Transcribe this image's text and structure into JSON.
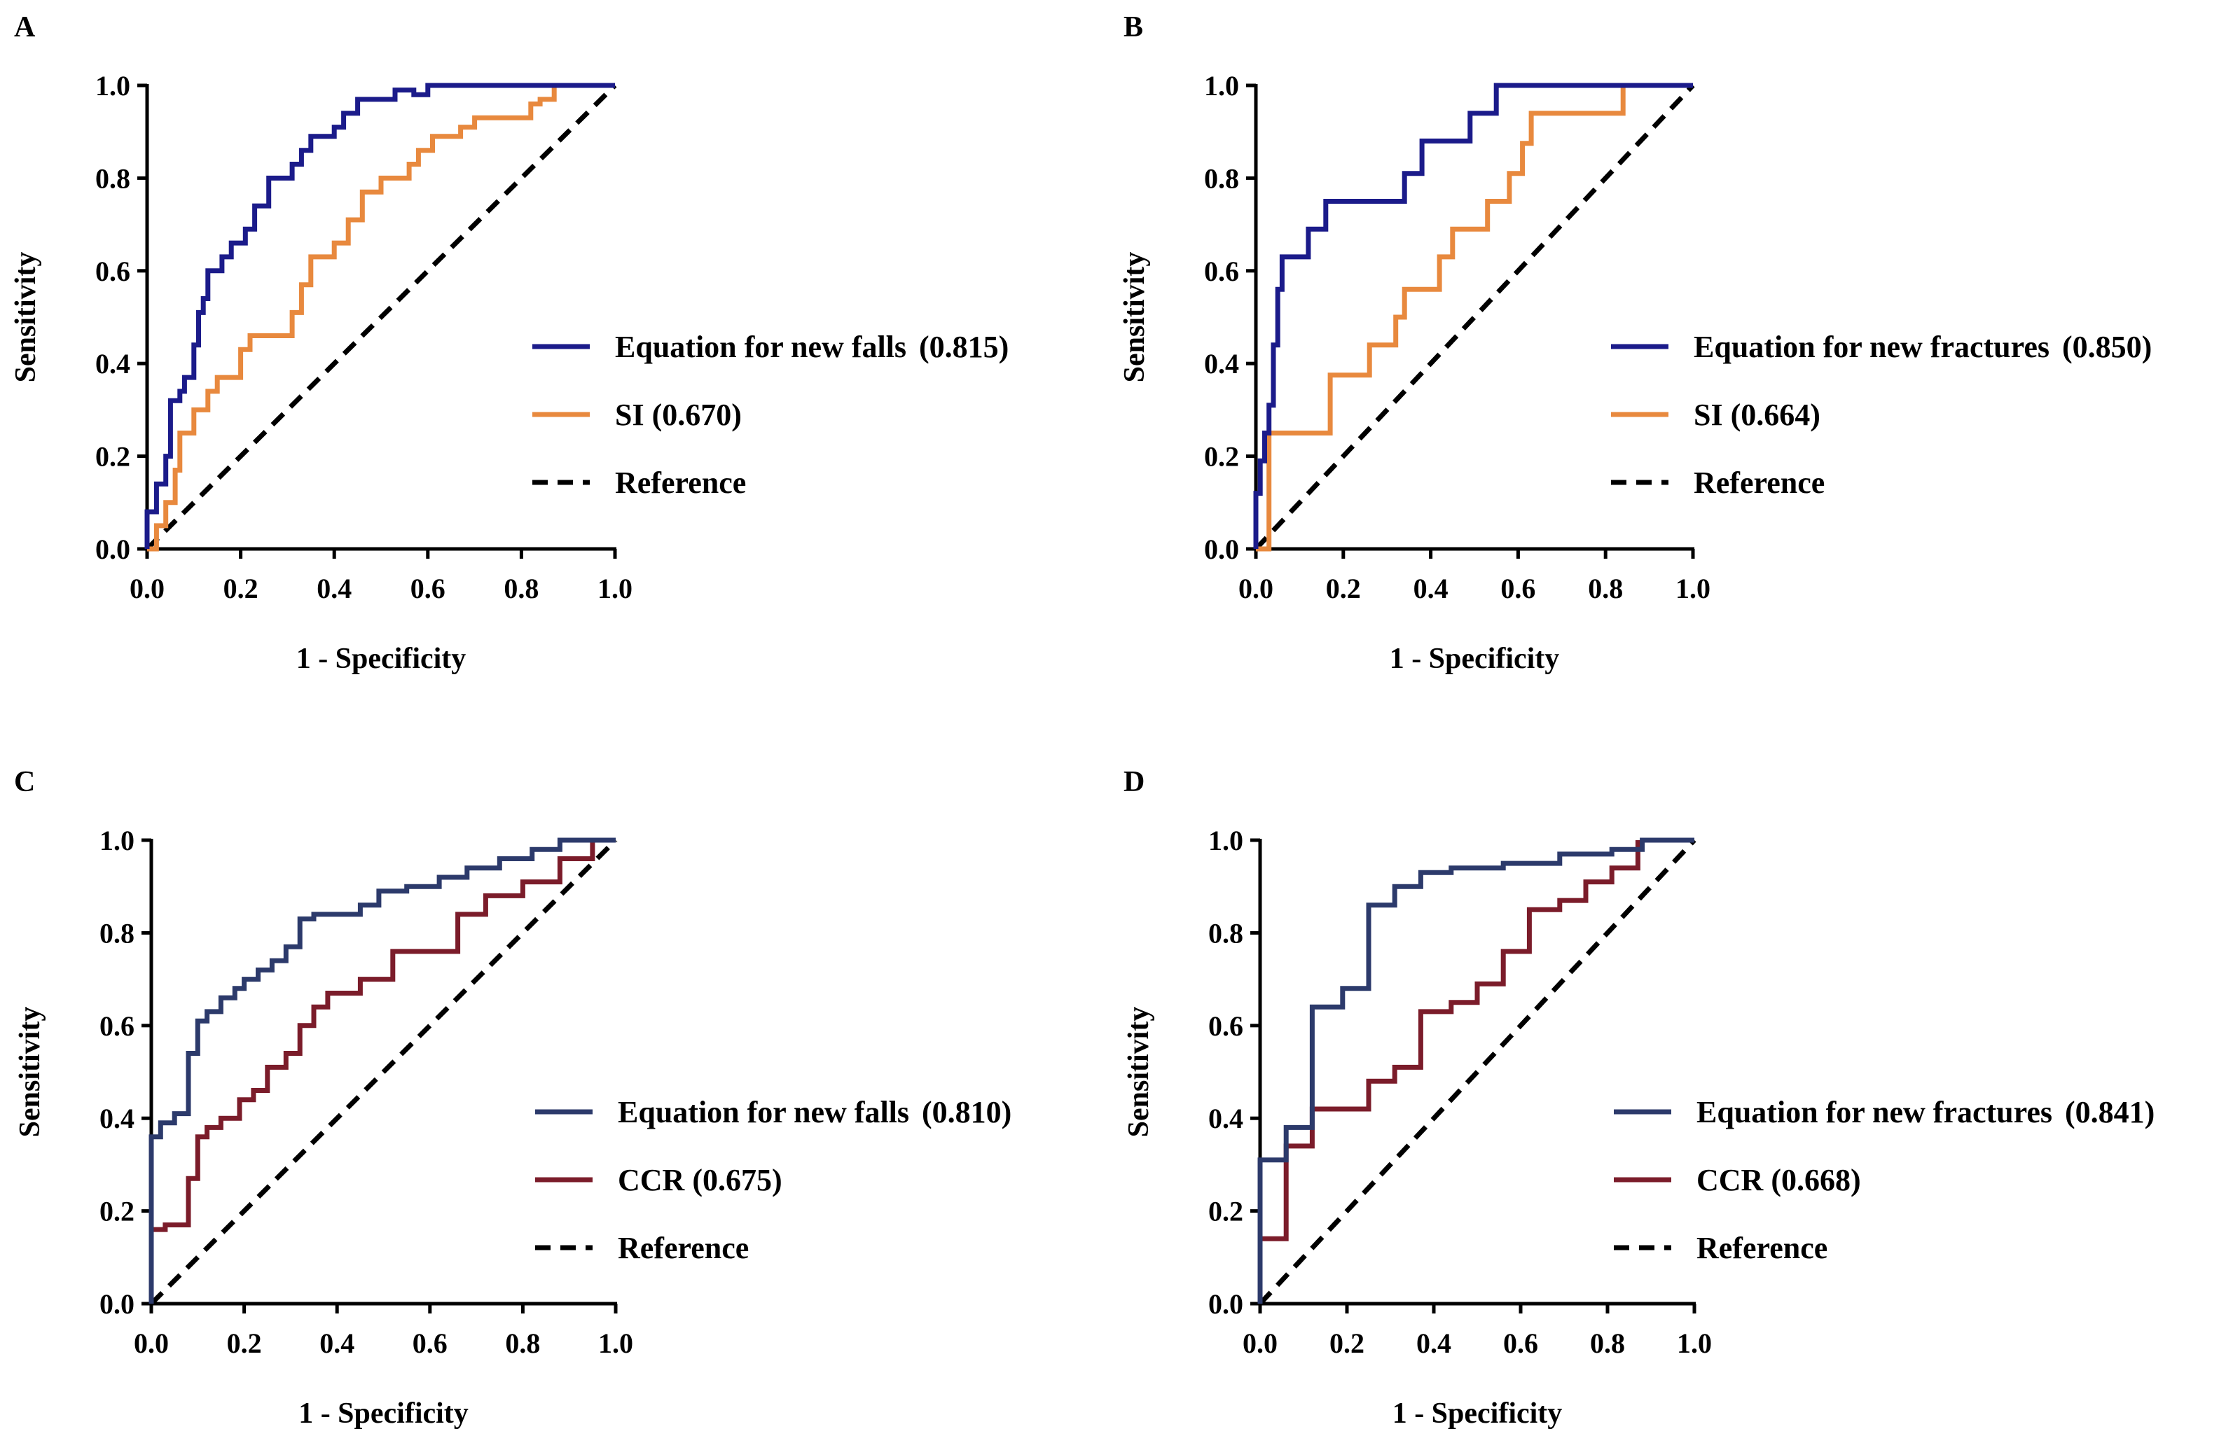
{
  "chart_data": [
    {
      "id": "A",
      "type": "line",
      "panel_label": "A",
      "title": "",
      "xlabel": "1 - Specificity",
      "ylabel": "Sensitivity",
      "xlim": [
        0,
        1
      ],
      "ylim": [
        0,
        1
      ],
      "ticks": [
        "0.0",
        "0.2",
        "0.4",
        "0.6",
        "0.8",
        "1.0"
      ],
      "legend_position": "right",
      "series": [
        {
          "name": "Equation for new falls (0.815)",
          "legend_name": "Equation for new falls",
          "legend_value": "(0.815)",
          "color": "#1b1b8a",
          "x": [
            0,
            0,
            0.02,
            0.02,
            0.04,
            0.04,
            0.05,
            0.05,
            0.07,
            0.07,
            0.08,
            0.08,
            0.1,
            0.1,
            0.11,
            0.11,
            0.12,
            0.12,
            0.13,
            0.13,
            0.16,
            0.16,
            0.18,
            0.18,
            0.21,
            0.21,
            0.23,
            0.23,
            0.26,
            0.26,
            0.31,
            0.31,
            0.33,
            0.33,
            0.35,
            0.35,
            0.4,
            0.4,
            0.42,
            0.42,
            0.45,
            0.45,
            0.53,
            0.53,
            0.57,
            0.57,
            0.6,
            0.6,
            1.0
          ],
          "y": [
            0,
            0.08,
            0.08,
            0.14,
            0.14,
            0.2,
            0.2,
            0.32,
            0.32,
            0.34,
            0.34,
            0.37,
            0.37,
            0.44,
            0.44,
            0.51,
            0.51,
            0.54,
            0.54,
            0.6,
            0.6,
            0.63,
            0.63,
            0.66,
            0.66,
            0.69,
            0.69,
            0.74,
            0.74,
            0.8,
            0.8,
            0.83,
            0.83,
            0.86,
            0.86,
            0.89,
            0.89,
            0.91,
            0.91,
            0.94,
            0.94,
            0.97,
            0.97,
            0.99,
            0.99,
            0.98,
            0.98,
            1.0,
            1.0
          ]
        },
        {
          "name": "SI (0.670)",
          "legend_name": "SI (0.670)",
          "legend_value": "",
          "color": "#e8893e",
          "x": [
            0,
            0.02,
            0.02,
            0.04,
            0.04,
            0.06,
            0.06,
            0.07,
            0.07,
            0.1,
            0.1,
            0.13,
            0.13,
            0.15,
            0.15,
            0.2,
            0.2,
            0.22,
            0.22,
            0.31,
            0.31,
            0.33,
            0.33,
            0.35,
            0.35,
            0.4,
            0.4,
            0.43,
            0.43,
            0.46,
            0.46,
            0.5,
            0.5,
            0.56,
            0.56,
            0.58,
            0.58,
            0.61,
            0.61,
            0.67,
            0.67,
            0.7,
            0.7,
            0.82,
            0.82,
            0.84,
            0.84,
            0.87,
            0.87
          ],
          "y": [
            0,
            0,
            0.05,
            0.05,
            0.1,
            0.1,
            0.17,
            0.17,
            0.25,
            0.25,
            0.3,
            0.3,
            0.34,
            0.34,
            0.37,
            0.37,
            0.43,
            0.43,
            0.46,
            0.46,
            0.51,
            0.51,
            0.57,
            0.57,
            0.63,
            0.63,
            0.66,
            0.66,
            0.71,
            0.71,
            0.77,
            0.77,
            0.8,
            0.8,
            0.83,
            0.83,
            0.86,
            0.86,
            0.89,
            0.89,
            0.91,
            0.91,
            0.93,
            0.93,
            0.96,
            0.96,
            0.97,
            0.97,
            1.0
          ]
        },
        {
          "name": "Reference",
          "legend_name": "Reference",
          "legend_value": "",
          "color": "#000000",
          "style": "dashed",
          "x": [
            0,
            1
          ],
          "y": [
            0,
            1
          ]
        }
      ]
    },
    {
      "id": "B",
      "type": "line",
      "panel_label": "B",
      "title": "",
      "xlabel": "1 - Specificity",
      "ylabel": "Sensitivity",
      "xlim": [
        0,
        1
      ],
      "ylim": [
        0,
        1
      ],
      "ticks": [
        "0.0",
        "0.2",
        "0.4",
        "0.6",
        "0.8",
        "1.0"
      ],
      "legend_position": "right",
      "series": [
        {
          "name": "Equation for new fractures (0.850)",
          "legend_name": "Equation for new fractures",
          "legend_value": "(0.850)",
          "color": "#1b1b8a",
          "x": [
            0,
            0,
            0.01,
            0.01,
            0.02,
            0.02,
            0.03,
            0.03,
            0.04,
            0.04,
            0.05,
            0.05,
            0.06,
            0.06,
            0.12,
            0.12,
            0.16,
            0.16,
            0.34,
            0.34,
            0.38,
            0.38,
            0.49,
            0.49,
            0.55,
            0.55,
            1.0
          ],
          "y": [
            0,
            0.12,
            0.12,
            0.19,
            0.19,
            0.25,
            0.25,
            0.31,
            0.31,
            0.44,
            0.44,
            0.56,
            0.56,
            0.63,
            0.63,
            0.69,
            0.69,
            0.75,
            0.75,
            0.81,
            0.81,
            0.88,
            0.88,
            0.94,
            0.94,
            1.0,
            1.0
          ]
        },
        {
          "name": "SI (0.664)",
          "legend_name": "SI (0.664)",
          "legend_value": "",
          "color": "#e8893e",
          "x": [
            0,
            0.03,
            0.03,
            0.17,
            0.17,
            0.26,
            0.26,
            0.32,
            0.32,
            0.34,
            0.34,
            0.42,
            0.42,
            0.45,
            0.45,
            0.53,
            0.53,
            0.58,
            0.58,
            0.61,
            0.61,
            0.63,
            0.63,
            0.84,
            0.84
          ],
          "y": [
            0,
            0,
            0.25,
            0.25,
            0.375,
            0.375,
            0.44,
            0.44,
            0.5,
            0.5,
            0.56,
            0.56,
            0.63,
            0.63,
            0.69,
            0.69,
            0.75,
            0.75,
            0.81,
            0.81,
            0.875,
            0.875,
            0.94,
            0.94,
            1.0
          ]
        },
        {
          "name": "Reference",
          "legend_name": "Reference",
          "legend_value": "",
          "color": "#000000",
          "style": "dashed",
          "x": [
            0,
            1
          ],
          "y": [
            0,
            1
          ]
        }
      ]
    },
    {
      "id": "C",
      "type": "line",
      "panel_label": "C",
      "title": "",
      "xlabel": "1 - Specificity",
      "ylabel": "Sensitivity",
      "xlim": [
        0,
        1
      ],
      "ylim": [
        0,
        1
      ],
      "ticks": [
        "0.0",
        "0.2",
        "0.4",
        "0.6",
        "0.8",
        "1.0"
      ],
      "legend_position": "right",
      "series": [
        {
          "name": "Equation for new falls (0.810)",
          "legend_name": "Equation for new falls",
          "legend_value": "(0.810)",
          "color": "#2c3a6b",
          "x": [
            0,
            0,
            0.02,
            0.02,
            0.05,
            0.05,
            0.08,
            0.08,
            0.1,
            0.1,
            0.12,
            0.12,
            0.15,
            0.15,
            0.18,
            0.18,
            0.2,
            0.2,
            0.23,
            0.23,
            0.26,
            0.26,
            0.29,
            0.29,
            0.32,
            0.32,
            0.35,
            0.35,
            0.45,
            0.45,
            0.49,
            0.49,
            0.55,
            0.55,
            0.62,
            0.62,
            0.68,
            0.68,
            0.75,
            0.75,
            0.82,
            0.82,
            0.88,
            0.88,
            1.0
          ],
          "y": [
            0,
            0.36,
            0.36,
            0.39,
            0.39,
            0.41,
            0.41,
            0.54,
            0.54,
            0.61,
            0.61,
            0.63,
            0.63,
            0.66,
            0.66,
            0.68,
            0.68,
            0.7,
            0.7,
            0.72,
            0.72,
            0.74,
            0.74,
            0.77,
            0.77,
            0.83,
            0.83,
            0.84,
            0.84,
            0.86,
            0.86,
            0.89,
            0.89,
            0.9,
            0.9,
            0.92,
            0.92,
            0.94,
            0.94,
            0.96,
            0.96,
            0.98,
            0.98,
            1.0,
            1.0
          ]
        },
        {
          "name": "CCR (0.675)",
          "legend_name": "CCR (0.675)",
          "legend_value": "",
          "color": "#7b1c2a",
          "x": [
            0,
            0,
            0.03,
            0.03,
            0.08,
            0.08,
            0.1,
            0.1,
            0.12,
            0.12,
            0.15,
            0.15,
            0.19,
            0.19,
            0.22,
            0.22,
            0.25,
            0.25,
            0.29,
            0.29,
            0.32,
            0.32,
            0.35,
            0.35,
            0.38,
            0.38,
            0.45,
            0.45,
            0.52,
            0.52,
            0.66,
            0.66,
            0.72,
            0.72,
            0.8,
            0.8,
            0.88,
            0.88,
            0.95,
            0.95
          ],
          "y": [
            0,
            0.16,
            0.16,
            0.17,
            0.17,
            0.27,
            0.27,
            0.36,
            0.36,
            0.38,
            0.38,
            0.4,
            0.4,
            0.44,
            0.44,
            0.46,
            0.46,
            0.51,
            0.51,
            0.54,
            0.54,
            0.6,
            0.6,
            0.64,
            0.64,
            0.67,
            0.67,
            0.7,
            0.7,
            0.76,
            0.76,
            0.84,
            0.84,
            0.88,
            0.88,
            0.91,
            0.91,
            0.96,
            0.96,
            1.0
          ]
        },
        {
          "name": "Reference",
          "legend_name": "Reference",
          "legend_value": "",
          "color": "#000000",
          "style": "dashed",
          "x": [
            0,
            1
          ],
          "y": [
            0,
            1
          ]
        }
      ]
    },
    {
      "id": "D",
      "type": "line",
      "panel_label": "D",
      "title": "",
      "xlabel": "1 - Specificity",
      "ylabel": "Sensitivity",
      "xlim": [
        0,
        1
      ],
      "ylim": [
        0,
        1
      ],
      "ticks": [
        "0.0",
        "0.2",
        "0.4",
        "0.6",
        "0.8",
        "1.0"
      ],
      "legend_position": "right",
      "series": [
        {
          "name": "Equation for new fractures (0.841)",
          "legend_name": "Equation for new fractures",
          "legend_value": "(0.841)",
          "color": "#2c3a6b",
          "x": [
            0,
            0,
            0.06,
            0.06,
            0.12,
            0.12,
            0.19,
            0.19,
            0.25,
            0.25,
            0.31,
            0.31,
            0.37,
            0.37,
            0.44,
            0.44,
            0.56,
            0.56,
            0.69,
            0.69,
            0.81,
            0.81,
            0.88,
            0.88,
            1.0
          ],
          "y": [
            0,
            0.31,
            0.31,
            0.38,
            0.38,
            0.64,
            0.64,
            0.68,
            0.68,
            0.86,
            0.86,
            0.9,
            0.9,
            0.93,
            0.93,
            0.94,
            0.94,
            0.95,
            0.95,
            0.97,
            0.97,
            0.98,
            0.98,
            1.0,
            1.0
          ]
        },
        {
          "name": "CCR (0.668)",
          "legend_name": "CCR (0.668)",
          "legend_value": "",
          "color": "#7b1c2a",
          "x": [
            0,
            0.06,
            0.06,
            0.12,
            0.12,
            0.25,
            0.25,
            0.31,
            0.31,
            0.37,
            0.37,
            0.44,
            0.44,
            0.5,
            0.5,
            0.56,
            0.56,
            0.62,
            0.62,
            0.69,
            0.69,
            0.75,
            0.75,
            0.81,
            0.81,
            0.87,
            0.87
          ],
          "y": [
            0.14,
            0.14,
            0.34,
            0.34,
            0.42,
            0.42,
            0.48,
            0.48,
            0.51,
            0.51,
            0.63,
            0.63,
            0.65,
            0.65,
            0.69,
            0.69,
            0.76,
            0.76,
            0.85,
            0.85,
            0.87,
            0.87,
            0.91,
            0.91,
            0.94,
            0.94,
            1.0
          ]
        },
        {
          "name": "Reference",
          "legend_name": "Reference",
          "legend_value": "",
          "color": "#000000",
          "style": "dashed",
          "x": [
            0,
            1
          ],
          "y": [
            0,
            1
          ]
        }
      ]
    }
  ]
}
